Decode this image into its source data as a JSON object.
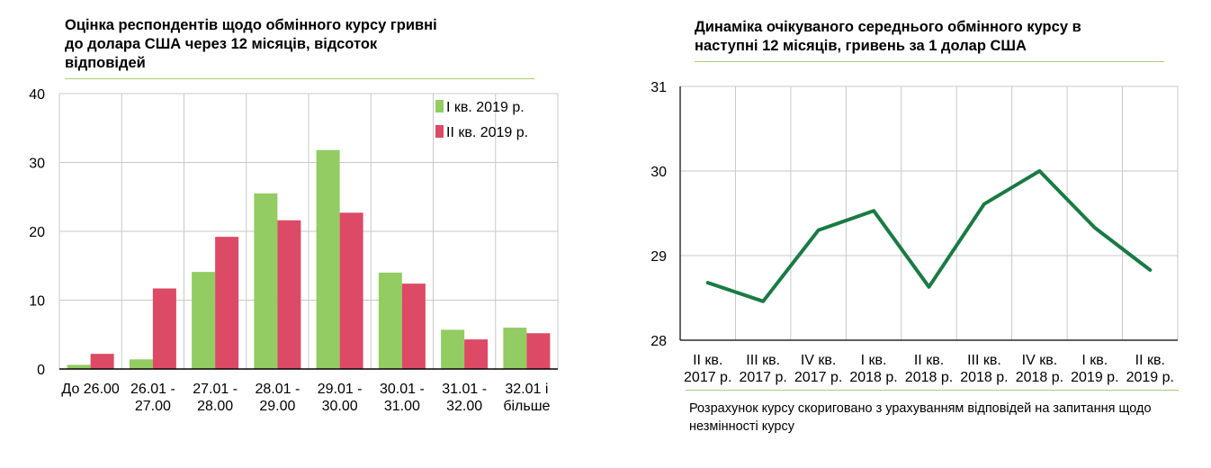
{
  "left_chart": {
    "title_lines": [
      "Оцінка респондентів щодо обмінного курсу гривні",
      "до долара США через 12 місяців, відсоток",
      "відповідей"
    ]
  },
  "right_chart": {
    "title_lines": [
      "Динаміка очікуваного середнього обмінного курсу в",
      "наступні 12 місяців, гривень за 1 долар США"
    ],
    "note": "Розрахунок курсу скориговано з урахуванням відповідей на запитання щодо незмінності курсу"
  },
  "colors": {
    "series1": "#92cc62",
    "series2": "#dc4a65",
    "line": "#1a7a44",
    "grid": "#c8c8c8",
    "rule": "#a9cf6e"
  },
  "chart_data": [
    {
      "type": "bar",
      "title": "Оцінка респондентів щодо обмінного курсу гривні до долара США через 12 місяців, відсоток відповідей",
      "categories": [
        [
          "До 26.00"
        ],
        [
          "26.01 -",
          "27.00"
        ],
        [
          "27.01 -",
          "28.00"
        ],
        [
          "28.01 -",
          "29.00"
        ],
        [
          "29.01 -",
          "30.00"
        ],
        [
          "30.01 -",
          "31.00"
        ],
        [
          "31.01 -",
          "32.00"
        ],
        [
          "32.01 і",
          "більше"
        ]
      ],
      "series": [
        {
          "name": "I кв. 2019 р.",
          "values": [
            0.6,
            1.4,
            14.1,
            25.5,
            31.8,
            14.0,
            5.7,
            6.0
          ]
        },
        {
          "name": "II кв. 2019 р.",
          "values": [
            2.2,
            11.7,
            19.2,
            21.6,
            22.7,
            12.4,
            4.3,
            5.2
          ]
        }
      ],
      "ylim": [
        0,
        40
      ],
      "yticks": [
        0,
        10,
        20,
        30,
        40
      ],
      "grid": true,
      "legend": "top-right"
    },
    {
      "type": "line",
      "title": "Динаміка очікуваного середнього обмінного курсу в наступні 12 місяців, гривень за 1 долар США",
      "categories": [
        [
          "II кв.",
          "2017 р."
        ],
        [
          "III кв.",
          "2017 р."
        ],
        [
          "IV кв.",
          "2017 р."
        ],
        [
          "I кв.",
          "2018 р."
        ],
        [
          "II кв.",
          "2018 р."
        ],
        [
          "III кв.",
          "2018 р."
        ],
        [
          "IV кв.",
          "2018 р."
        ],
        [
          "I кв.",
          "2019 р."
        ],
        [
          "II кв.",
          "2019 р."
        ]
      ],
      "series": [
        {
          "values": [
            28.68,
            28.46,
            29.3,
            29.53,
            28.63,
            29.61,
            30.0,
            29.33,
            28.83
          ]
        }
      ],
      "ylim": [
        28,
        31
      ],
      "yticks": [
        28,
        29,
        30,
        31
      ],
      "grid": true
    }
  ]
}
